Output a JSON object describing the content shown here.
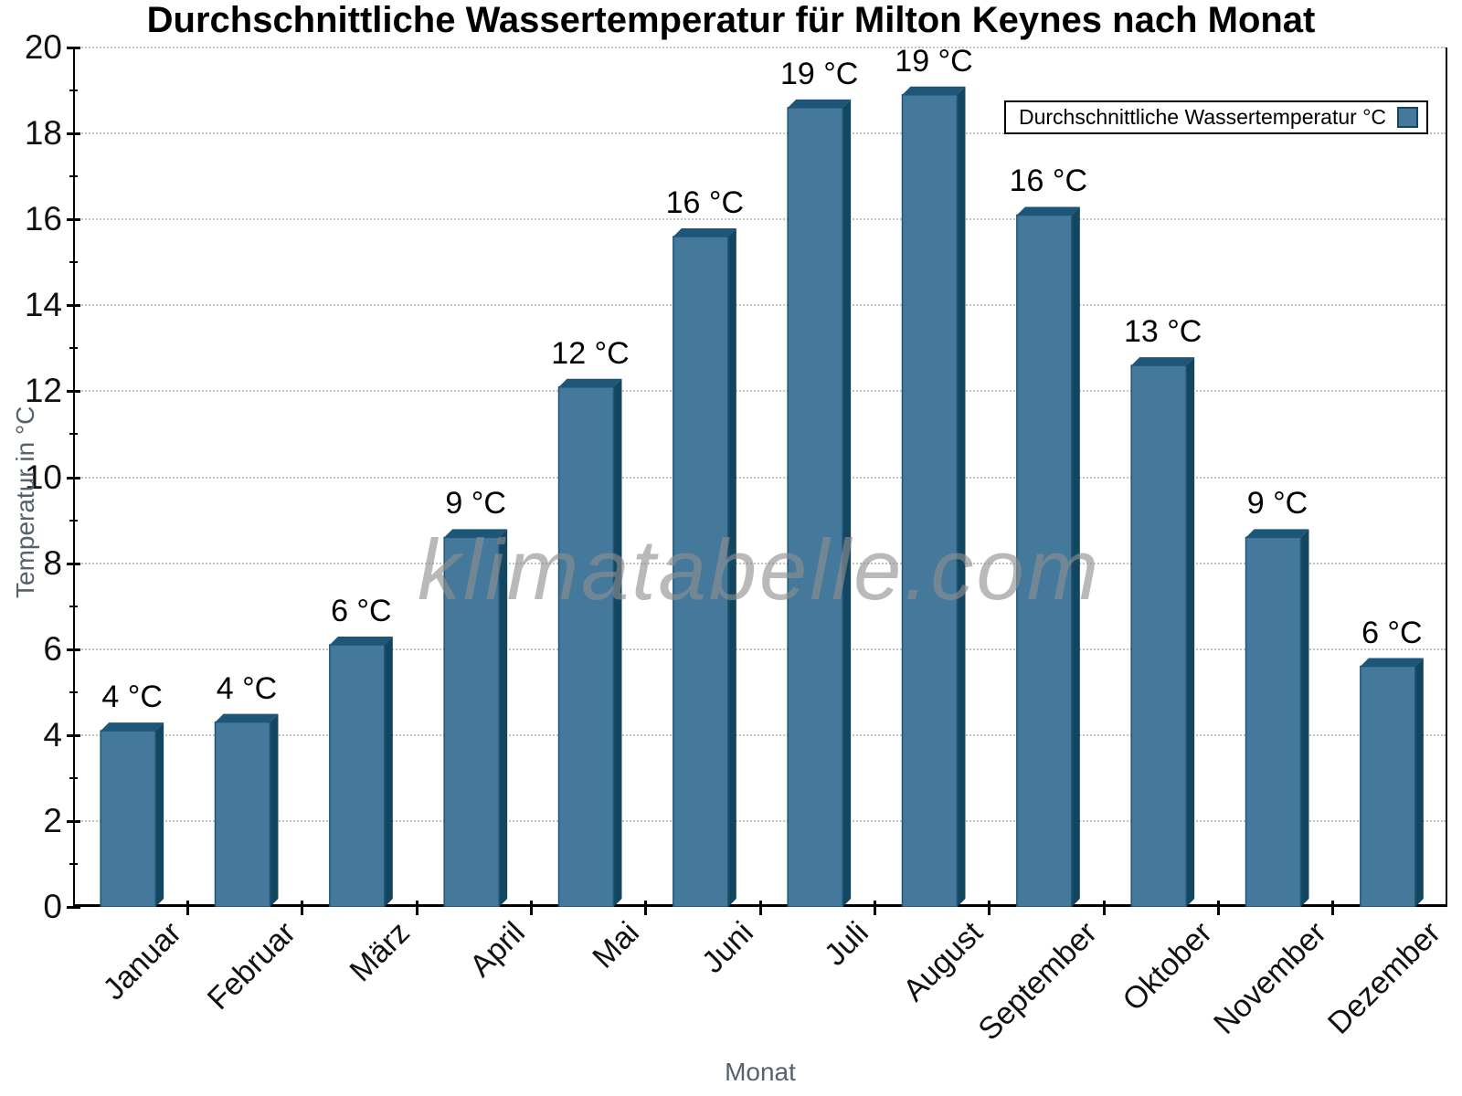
{
  "chart_data": {
    "type": "bar",
    "title": "Durchschnittliche Wassertemperatur für Milton Keynes nach Monat",
    "xlabel": "Monat",
    "ylabel": "Temperatur in °C",
    "categories": [
      "Januar",
      "Februar",
      "März",
      "April",
      "Mai",
      "Juni",
      "Juli",
      "August",
      "September",
      "Oktober",
      "November",
      "Dezember"
    ],
    "values": [
      4.1,
      4.3,
      6.1,
      8.6,
      12.1,
      15.6,
      18.6,
      18.9,
      16.1,
      12.6,
      8.6,
      5.6
    ],
    "bar_labels": [
      "4 °C",
      "4 °C",
      "6 °C",
      "9 °C",
      "12 °C",
      "16 °C",
      "19 °C",
      "19 °C",
      "16 °C",
      "13 °C",
      "9 °C",
      "6 °C"
    ],
    "ylim": [
      0,
      20
    ],
    "ytick_step": 2,
    "grid": "horizontal-dotted",
    "legend": {
      "position": "top-right",
      "label": "Durchschnittliche Wassertemperatur °C"
    },
    "watermark": "klimatabelle.com",
    "colors": {
      "bar_front": "#45799c",
      "bar_top": "#1d5679",
      "bar_side": "#154660",
      "grid_line": "#c3c3c3",
      "axis_title": "#55616c",
      "watermark_text": "#8f8f8f"
    }
  }
}
